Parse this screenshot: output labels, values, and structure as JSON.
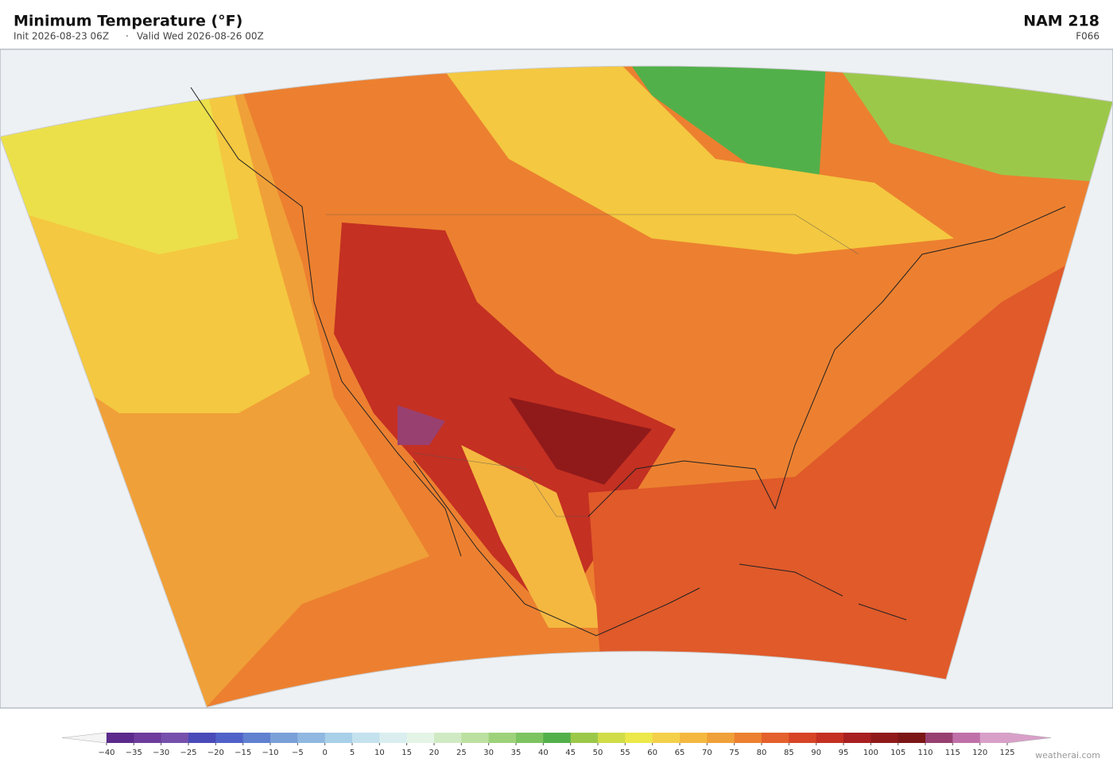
{
  "header": {
    "title": "Minimum Temperature  (°F)",
    "init": "Init 2026-08-23 06Z",
    "separator": "·",
    "valid": "Valid Wed 2026-08-26 00Z",
    "model": "NAM  218",
    "forecast_hour": "F066"
  },
  "colorbar": {
    "ticks": [
      {
        "value": -40,
        "label": "−40"
      },
      {
        "value": -35,
        "label": "−35"
      },
      {
        "value": -30,
        "label": "−30"
      },
      {
        "value": -25,
        "label": "−25"
      },
      {
        "value": -20,
        "label": "−20"
      },
      {
        "value": -15,
        "label": "−15"
      },
      {
        "value": -10,
        "label": "−10"
      },
      {
        "value": -5,
        "label": "−5"
      },
      0,
      5,
      10,
      15,
      20,
      25,
      30,
      35,
      40,
      45,
      50,
      55,
      60,
      65,
      70,
      75,
      80,
      85,
      90,
      95,
      100,
      105,
      110,
      115,
      120,
      125
    ],
    "lim": [
      -40,
      125
    ],
    "colors": [
      "#5b2a8c",
      "#6d3c9c",
      "#7650ac",
      "#4a4ab8",
      "#5062c8",
      "#6080d0",
      "#7aa0d8",
      "#90b8e0",
      "#a8d0e8",
      "#c4e2ee",
      "#daeef0",
      "#e4f4e6",
      "#d0eac4",
      "#bce0a0",
      "#9ed27a",
      "#7cc460",
      "#52b04a",
      "#9cc84a",
      "#d0dc48",
      "#ece84a",
      "#f4d04a",
      "#f4b840",
      "#f0a038",
      "#ec8030",
      "#e4602c",
      "#d84426",
      "#c43022",
      "#a82020",
      "#901a1a",
      "#7c1616",
      "#984070",
      "#c070a8",
      "#d8a0c8"
    ],
    "under_color": "#f4f4f4",
    "over_color": "#d8a0c8"
  },
  "attribution": "weatherai.com"
}
